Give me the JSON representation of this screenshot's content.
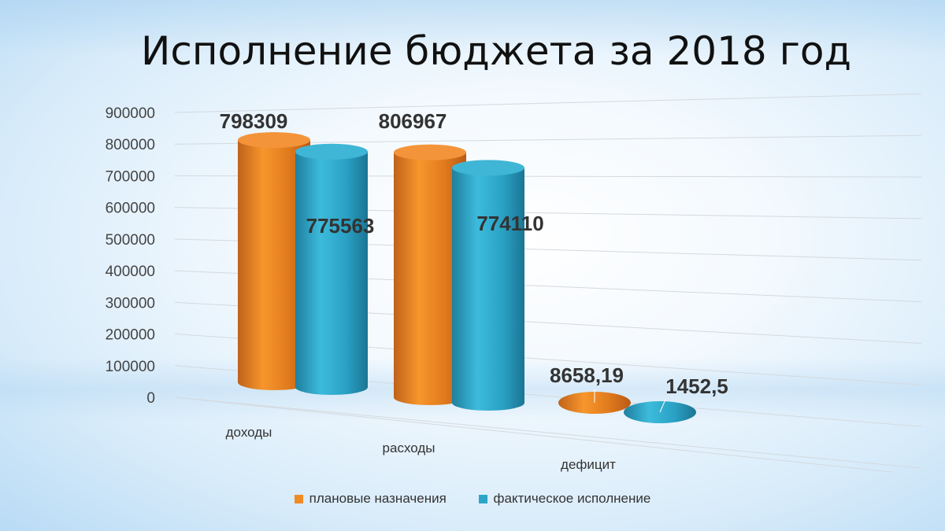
{
  "title": "Исполнение бюджета за 2018 год",
  "chart_data": {
    "type": "bar",
    "style": "3d-cylinder",
    "title": "Исполнение бюджета за 2018 год",
    "categories": [
      "доходы",
      "расходы",
      "дефицит"
    ],
    "series": [
      {
        "name": "плановые назначения",
        "color": "#f08a24",
        "values": [
          798309,
          806967,
          8658.19
        ],
        "labels": [
          "798309",
          "806967",
          "8658,19"
        ]
      },
      {
        "name": "фактическое исполнение",
        "color": "#2ba6c6",
        "values": [
          775563,
          774110,
          1452.5
        ],
        "labels": [
          "775563",
          "774110",
          "1452,5"
        ]
      }
    ],
    "yticks": [
      "0",
      "100000",
      "200000",
      "300000",
      "400000",
      "500000",
      "600000",
      "700000",
      "800000",
      "900000"
    ],
    "ylim": [
      0,
      900000
    ],
    "grid": true,
    "legend_position": "bottom"
  }
}
